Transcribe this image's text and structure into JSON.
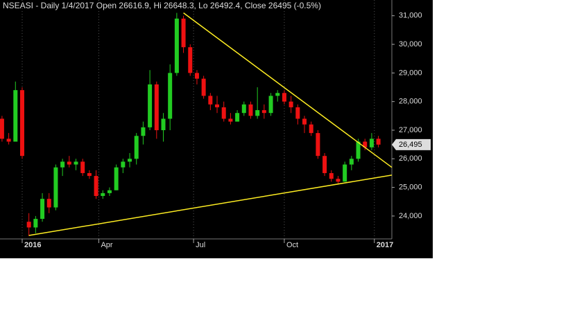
{
  "chart_data": {
    "type": "candlestick",
    "title": "NSEASI - Daily 1/4/2017 Open 26616.9, Hi 26648.3, Lo 26492.4, Close 26495 (-0.5%)",
    "x": [
      -3,
      -2,
      -1,
      0,
      1,
      2,
      3,
      4,
      5,
      6,
      7,
      8,
      9,
      10,
      11,
      12,
      13,
      14,
      15,
      16,
      17,
      18,
      19,
      20,
      21,
      22,
      23,
      24,
      25,
      26,
      27,
      28,
      29,
      30,
      31,
      32,
      33,
      34,
      35,
      36,
      37,
      38,
      39,
      40,
      41,
      42,
      43,
      44,
      45,
      46,
      47,
      48,
      49,
      50,
      51,
      52,
      53
    ],
    "open": [
      27400,
      26700,
      26600,
      28400,
      23800,
      23600,
      23900,
      24600,
      24300,
      25700,
      25900,
      25800,
      25900,
      25500,
      25400,
      24700,
      24800,
      24900,
      25700,
      25900,
      26000,
      26800,
      27100,
      28600,
      27000,
      27400,
      29000,
      30900,
      29900,
      29000,
      28800,
      28200,
      27900,
      27800,
      27400,
      27300,
      27600,
      27900,
      27500,
      27700,
      27600,
      28200,
      28300,
      28000,
      27800,
      27400,
      27200,
      26900,
      26100,
      25500,
      25300,
      25200,
      25800,
      26000,
      26600,
      26400,
      26700
    ],
    "high": [
      27500,
      26900,
      28700,
      28500,
      24100,
      24000,
      24800,
      24800,
      25800,
      26000,
      26100,
      26000,
      26000,
      25600,
      25600,
      24900,
      25000,
      25800,
      26000,
      26200,
      26900,
      27300,
      29100,
      28700,
      27600,
      29300,
      31100,
      31000,
      30000,
      29100,
      28900,
      28300,
      28200,
      28000,
      27600,
      27700,
      28000,
      28000,
      28500,
      27900,
      28300,
      28400,
      28400,
      28200,
      27900,
      27500,
      27300,
      27000,
      26200,
      25600,
      25400,
      25900,
      26100,
      26700,
      26700,
      26900,
      26800
    ],
    "low": [
      26600,
      26500,
      26600,
      26000,
      23300,
      23400,
      23800,
      24100,
      24200,
      25400,
      25700,
      25600,
      25400,
      25300,
      24600,
      24600,
      24700,
      24900,
      25500,
      25700,
      25800,
      26500,
      27000,
      26700,
      26600,
      27000,
      28900,
      29700,
      28900,
      28600,
      28100,
      27700,
      27600,
      27300,
      27200,
      27300,
      27500,
      27400,
      27400,
      27400,
      27500,
      28000,
      27900,
      27600,
      27200,
      26900,
      26800,
      26000,
      25400,
      25200,
      25100,
      25200,
      25600,
      25900,
      26300,
      26300,
      26400
    ],
    "close": [
      26700,
      26600,
      28400,
      26100,
      23600,
      23900,
      24600,
      24300,
      25700,
      25900,
      25800,
      25900,
      25500,
      25400,
      24700,
      24800,
      24900,
      25700,
      25900,
      26000,
      26800,
      27100,
      28600,
      27000,
      27400,
      29000,
      30900,
      29900,
      29000,
      28800,
      28200,
      27900,
      27800,
      27400,
      27300,
      27600,
      27900,
      27500,
      27700,
      27600,
      28200,
      28300,
      28000,
      27800,
      27400,
      27200,
      26900,
      26100,
      25500,
      25300,
      25200,
      25800,
      26000,
      26600,
      26400,
      26700,
      26495
    ],
    "up_color": "#22cc22",
    "down_color": "#ee1111",
    "trendlines": [
      {
        "color": "#ffee22",
        "x": [
          24.0,
          55.0
        ],
        "y": [
          31100,
          25700
        ]
      },
      {
        "color": "#ffee22",
        "x": [
          1.0,
          55.0
        ],
        "y": [
          23320,
          25430
        ]
      }
    ],
    "last_price": {
      "value": 26495,
      "label": "26,495"
    },
    "xlim": [
      -3.3,
      55
    ],
    "xticks": [
      {
        "value": 0,
        "label": "2016"
      },
      {
        "value": 11.4,
        "label": "Apr"
      },
      {
        "value": 25.5,
        "label": "Jul"
      },
      {
        "value": 39,
        "label": "Oct"
      },
      {
        "value": 52.4,
        "label": "2017"
      }
    ],
    "ylim": [
      23200,
      31550
    ],
    "yticks": [
      {
        "value": 24000,
        "label": "24,000"
      },
      {
        "value": 25000,
        "label": "25,000"
      },
      {
        "value": 26000,
        "label": "26,000"
      },
      {
        "value": 27000,
        "label": "27,000"
      },
      {
        "value": 28000,
        "label": "28,000"
      },
      {
        "value": 29000,
        "label": "29,000"
      },
      {
        "value": 30000,
        "label": "30,000"
      },
      {
        "value": 31000,
        "label": "31,000"
      }
    ],
    "grid": true
  }
}
